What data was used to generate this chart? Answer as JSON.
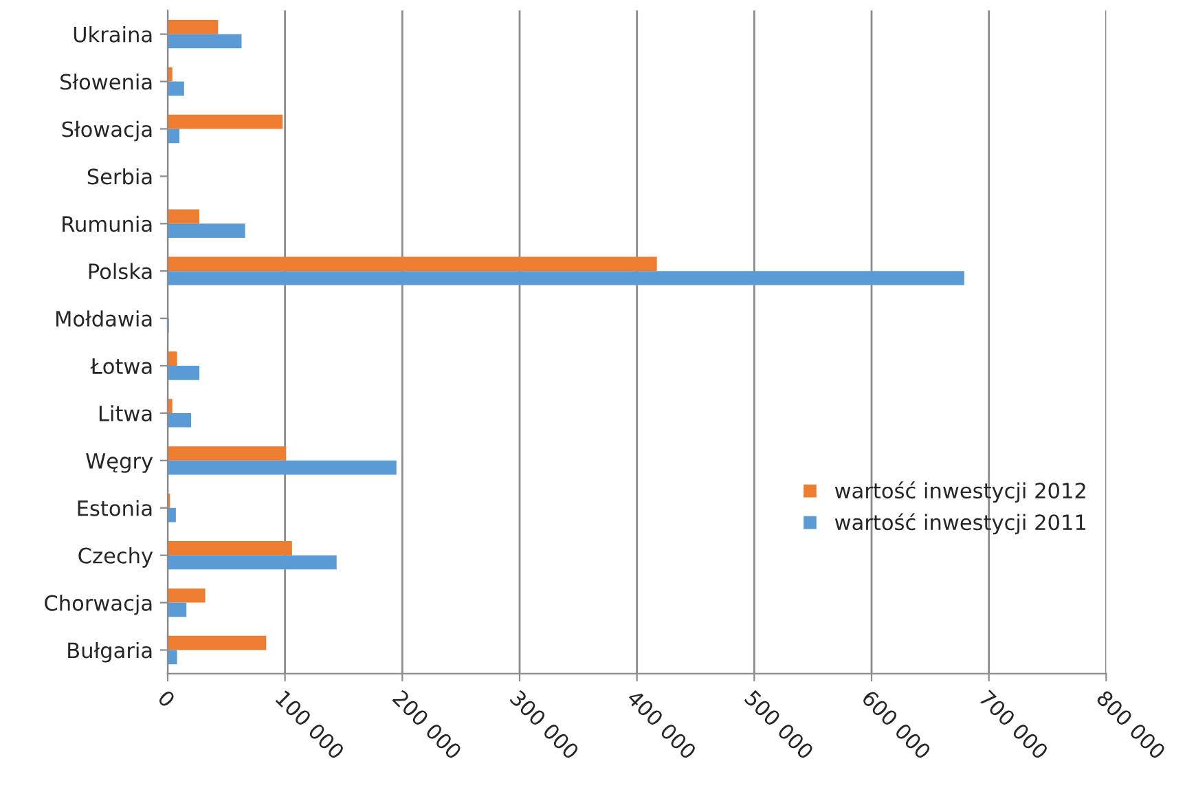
{
  "chart_data": {
    "type": "bar",
    "orientation": "horizontal",
    "categories": [
      "Ukraina",
      "Słowenia",
      "Słowacja",
      "Serbia",
      "Rumunia",
      "Polska",
      "Mołdawia",
      "Łotwa",
      "Litwa",
      "Węgry",
      "Estonia",
      "Czechy",
      "Chorwacja",
      "Bułgaria"
    ],
    "series": [
      {
        "name": "wartość inwestycji 2012",
        "color": "#ed7d31",
        "values": [
          43000,
          4000,
          98000,
          null,
          27000,
          417000,
          null,
          8000,
          4000,
          101000,
          2000,
          106000,
          32000,
          84000
        ]
      },
      {
        "name": "wartość inwestycji 2011",
        "color": "#5b9bd5",
        "values": [
          63000,
          14000,
          10000,
          null,
          66000,
          679000,
          1000,
          27000,
          20000,
          195000,
          7000,
          144000,
          16000,
          8000
        ]
      }
    ],
    "xlim": [
      0,
      800000
    ],
    "xticks": [
      0,
      {
        "value": 100000,
        "label": "100 000"
      },
      {
        "value": 200000,
        "label": "200 000"
      },
      {
        "value": 300000,
        "label": "300 000"
      },
      {
        "value": 400000,
        "label": "400 000"
      },
      {
        "value": 500000,
        "label": "500 000"
      },
      {
        "value": 600000,
        "label": "600 000"
      },
      {
        "value": 700000,
        "label": "700 000"
      },
      {
        "value": 800000,
        "label": "800 000"
      }
    ],
    "grid": "x",
    "legend": "center right"
  }
}
